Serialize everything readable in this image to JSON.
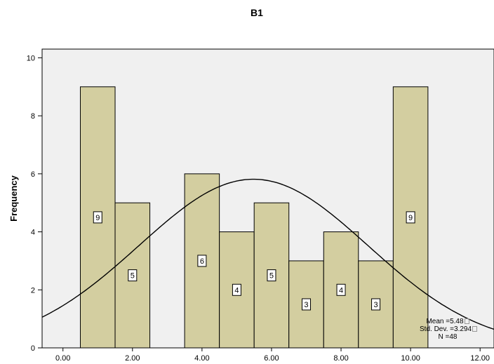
{
  "chart_data": {
    "type": "bar",
    "title": "B1",
    "xlabel": "",
    "ylabel": "Frequency",
    "xlim": [
      -0.6,
      12.4
    ],
    "ylim": [
      0,
      10.3
    ],
    "xticks": [
      "0.00",
      "2.00",
      "4.00",
      "6.00",
      "8.00",
      "10.00",
      "12.00"
    ],
    "xtick_values": [
      0,
      2,
      4,
      6,
      8,
      10,
      12
    ],
    "yticks": [
      "0",
      "2",
      "4",
      "6",
      "8",
      "10"
    ],
    "ytick_values": [
      0,
      2,
      4,
      6,
      8,
      10
    ],
    "bins": [
      {
        "x0": 0.5,
        "x1": 1.5,
        "count": 9,
        "label": "9"
      },
      {
        "x0": 1.5,
        "x1": 2.5,
        "count": 5,
        "label": "5"
      },
      {
        "x0": 3.5,
        "x1": 4.5,
        "count": 6,
        "label": "6"
      },
      {
        "x0": 4.5,
        "x1": 5.5,
        "count": 4,
        "label": "4"
      },
      {
        "x0": 5.5,
        "x1": 6.5,
        "count": 5,
        "label": "5"
      },
      {
        "x0": 6.5,
        "x1": 7.5,
        "count": 3,
        "label": "3"
      },
      {
        "x0": 7.5,
        "x1": 8.5,
        "count": 4,
        "label": "4"
      },
      {
        "x0": 8.5,
        "x1": 9.5,
        "count": 3,
        "label": "3"
      },
      {
        "x0": 9.5,
        "x1": 10.5,
        "count": 9,
        "label": "9"
      }
    ],
    "normal_curve": {
      "mean": 5.48,
      "sd": 3.294,
      "n": 48,
      "bin_width": 1
    },
    "grid": false,
    "colors": {
      "bar_fill": "#d3cea0",
      "plot_bg": "#f0f0f0",
      "stroke": "#000000"
    }
  },
  "stats": {
    "mean": "Mean =5.48",
    "std_dev": "Std. Dev. =3.294",
    "n": "N =48"
  }
}
